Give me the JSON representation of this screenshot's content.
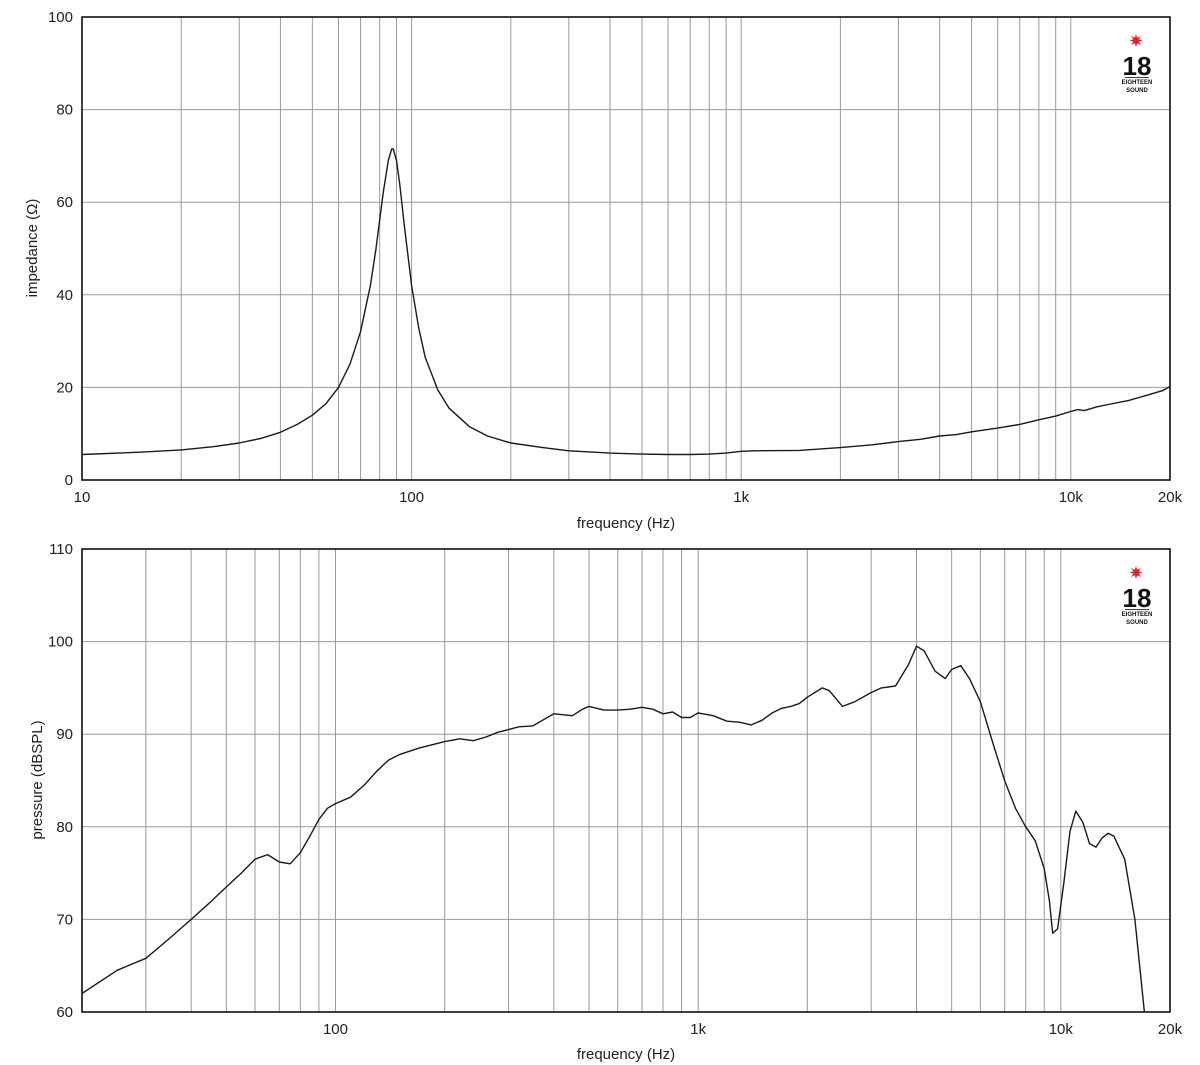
{
  "brand": {
    "logo_number": "18",
    "logo_line1": "EIGHTEEN",
    "logo_line2": "SOUND",
    "star_color": "#e0202a"
  },
  "chart_data": [
    {
      "type": "line",
      "xscale": "log",
      "xlim": [
        10,
        20000
      ],
      "ylim": [
        0,
        100
      ],
      "xlabel": "frequency (Hz)",
      "ylabel": "impedance (Ω)",
      "xticks": [
        {
          "v": 10,
          "label": "10"
        },
        {
          "v": 100,
          "label": "100"
        },
        {
          "v": 1000,
          "label": "1k"
        },
        {
          "v": 10000,
          "label": "10k"
        },
        {
          "v": 20000,
          "label": "20k"
        }
      ],
      "yticks": [
        0,
        20,
        40,
        60,
        80,
        100
      ],
      "grid": true,
      "x": [
        10,
        15,
        20,
        25,
        30,
        35,
        40,
        45,
        50,
        55,
        60,
        65,
        70,
        75,
        78,
        82,
        85,
        87,
        88,
        90,
        92,
        95,
        100,
        105,
        110,
        120,
        130,
        150,
        170,
        200,
        250,
        300,
        400,
        500,
        600,
        700,
        800,
        900,
        1000,
        1100,
        1500,
        2000,
        2500,
        3000,
        3500,
        4000,
        4500,
        5000,
        6000,
        7000,
        8000,
        9000,
        10000,
        10500,
        11000,
        12000,
        13000,
        15000,
        17000,
        19000,
        20000
      ],
      "y": [
        5.5,
        6.0,
        6.5,
        7.2,
        8.0,
        9.0,
        10.3,
        12.0,
        14.0,
        16.5,
        20.0,
        25.0,
        32.0,
        42.0,
        50.0,
        62.0,
        69.0,
        71.5,
        71.5,
        69.0,
        64.0,
        55.0,
        42.0,
        33.0,
        26.5,
        19.5,
        15.5,
        11.5,
        9.5,
        8.0,
        7.0,
        6.3,
        5.8,
        5.6,
        5.5,
        5.5,
        5.6,
        5.8,
        6.2,
        6.3,
        6.4,
        7.0,
        7.6,
        8.3,
        8.8,
        9.5,
        9.8,
        10.4,
        11.2,
        12.0,
        13.0,
        13.8,
        14.8,
        15.2,
        15.0,
        15.8,
        16.3,
        17.2,
        18.3,
        19.3,
        20.2
      ]
    },
    {
      "type": "line",
      "xscale": "log",
      "xlim": [
        20,
        20000
      ],
      "ylim": [
        60,
        110
      ],
      "xlabel": "frequency (Hz)",
      "ylabel": "pressure (dBSPL)",
      "xticks": [
        {
          "v": 100,
          "label": "100"
        },
        {
          "v": 1000,
          "label": "1k"
        },
        {
          "v": 10000,
          "label": "10k"
        },
        {
          "v": 20000,
          "label": "20k"
        }
      ],
      "yticks": [
        60,
        70,
        80,
        90,
        100,
        110
      ],
      "grid": true,
      "x": [
        20,
        25,
        30,
        35,
        40,
        45,
        50,
        55,
        60,
        65,
        70,
        75,
        80,
        85,
        90,
        95,
        100,
        110,
        120,
        130,
        140,
        150,
        170,
        200,
        220,
        240,
        260,
        280,
        300,
        320,
        350,
        400,
        450,
        480,
        500,
        550,
        600,
        650,
        700,
        750,
        800,
        850,
        900,
        950,
        1000,
        1100,
        1200,
        1300,
        1400,
        1500,
        1600,
        1700,
        1800,
        1900,
        2000,
        2200,
        2300,
        2500,
        2700,
        3000,
        3200,
        3500,
        3800,
        4000,
        4200,
        4500,
        4800,
        5000,
        5300,
        5600,
        6000,
        6500,
        7000,
        7500,
        8000,
        8500,
        9000,
        9300,
        9500,
        9800,
        10200,
        10600,
        11000,
        11500,
        12000,
        12500,
        13000,
        13500,
        14000,
        15000,
        16000,
        17000
      ],
      "y": [
        62.0,
        64.5,
        65.8,
        68.0,
        70.0,
        71.8,
        73.5,
        75.0,
        76.5,
        77.0,
        76.2,
        76.0,
        77.2,
        79.0,
        80.8,
        82.0,
        82.5,
        83.2,
        84.5,
        86.0,
        87.2,
        87.8,
        88.5,
        89.2,
        89.5,
        89.3,
        89.7,
        90.2,
        90.5,
        90.8,
        90.9,
        92.2,
        92.0,
        92.7,
        93.0,
        92.6,
        92.6,
        92.7,
        92.9,
        92.7,
        92.2,
        92.4,
        91.8,
        91.8,
        92.3,
        92.0,
        91.4,
        91.3,
        91.0,
        91.5,
        92.3,
        92.8,
        93.0,
        93.3,
        94.0,
        95.0,
        94.7,
        93.0,
        93.5,
        94.5,
        95.0,
        95.2,
        97.5,
        99.5,
        99.0,
        96.8,
        96.0,
        97.0,
        97.4,
        96.0,
        93.5,
        89.0,
        85.0,
        82.0,
        80.0,
        78.5,
        75.5,
        72.0,
        68.5,
        69.0,
        74.0,
        79.5,
        81.7,
        80.5,
        78.2,
        77.8,
        78.8,
        79.3,
        79.0,
        76.5,
        70.0,
        60.0
      ]
    }
  ]
}
